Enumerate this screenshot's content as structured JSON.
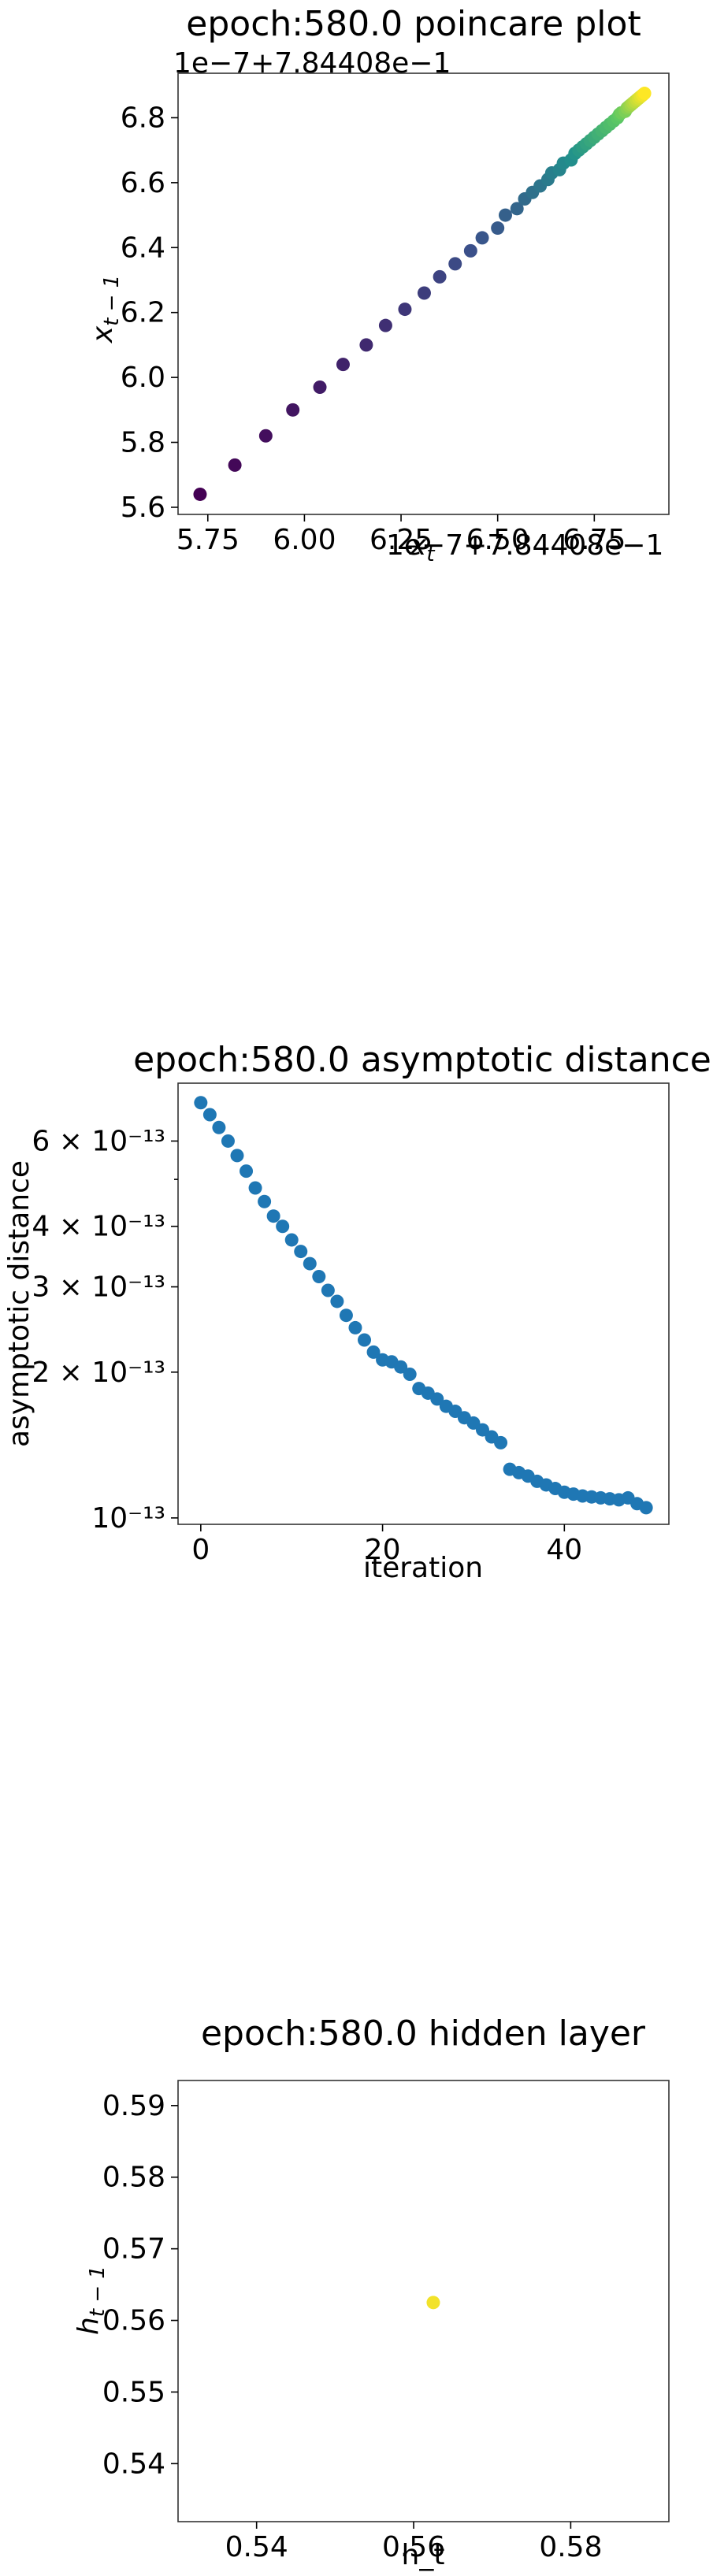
{
  "chart_data": [
    {
      "type": "scatter",
      "title": "epoch:580.0 poincare plot",
      "xlabel": "x_t",
      "ylabel": "x_{t-1}",
      "x_offset_label": "1e−7+7.84408e−1",
      "y_offset_label": "1e−7+7.84408e−1",
      "x_ticks": [
        "5.75",
        "6.00",
        "6.25",
        "6.50",
        "6.75"
      ],
      "y_ticks": [
        "5.6",
        "5.8",
        "6.0",
        "6.2",
        "6.4",
        "6.6",
        "6.8"
      ],
      "colormap": "viridis",
      "x": [
        5.73,
        5.82,
        5.9,
        5.97,
        6.04,
        6.1,
        6.16,
        6.21,
        6.26,
        6.31,
        6.35,
        6.39,
        6.43,
        6.46,
        6.5,
        6.52,
        6.55,
        6.57,
        6.59,
        6.61,
        6.63,
        6.64,
        6.66,
        6.67,
        6.69,
        6.7,
        6.71,
        6.72,
        6.73,
        6.74,
        6.75,
        6.76,
        6.77,
        6.78,
        6.79,
        6.8,
        6.81,
        6.815,
        6.82,
        6.83,
        6.835,
        6.84,
        6.845,
        6.85,
        6.855,
        6.86,
        6.865,
        6.87,
        6.875,
        6.88
      ],
      "y": [
        5.64,
        5.73,
        5.82,
        5.9,
        5.97,
        6.04,
        6.1,
        6.16,
        6.21,
        6.26,
        6.31,
        6.35,
        6.39,
        6.43,
        6.46,
        6.5,
        6.52,
        6.55,
        6.57,
        6.59,
        6.61,
        6.63,
        6.64,
        6.66,
        6.67,
        6.69,
        6.7,
        6.71,
        6.72,
        6.73,
        6.74,
        6.75,
        6.76,
        6.77,
        6.78,
        6.79,
        6.8,
        6.81,
        6.815,
        6.82,
        6.83,
        6.835,
        6.84,
        6.845,
        6.85,
        6.855,
        6.86,
        6.865,
        6.87,
        6.875
      ]
    },
    {
      "type": "scatter",
      "title": "epoch:580.0 asymptotic distance",
      "xlabel": "iteration",
      "ylabel": "asymptotic distance",
      "yscale": "log",
      "x_ticks": [
        "0",
        "20",
        "40"
      ],
      "y_ticks": [
        "6 × 10⁻¹³",
        "4 × 10⁻¹³",
        "3 × 10⁻¹³",
        "2 × 10⁻¹³",
        "10⁻¹³"
      ],
      "color": "#1f77b4",
      "x": [
        0,
        1,
        2,
        3,
        4,
        5,
        6,
        7,
        8,
        9,
        10,
        11,
        12,
        13,
        14,
        15,
        16,
        17,
        18,
        19,
        20,
        21,
        22,
        23,
        24,
        25,
        26,
        27,
        28,
        29,
        30,
        31,
        32,
        33,
        34,
        35,
        36,
        37,
        38,
        39,
        40,
        41,
        42,
        43,
        44,
        45,
        46,
        47,
        48,
        49
      ],
      "y": [
        7.2e-13,
        6.8e-13,
        6.4e-13,
        6e-13,
        5.6e-13,
        5.2e-13,
        4.8e-13,
        4.5e-13,
        4.2e-13,
        4e-13,
        3.75e-13,
        3.55e-13,
        3.35e-13,
        3.15e-13,
        2.95e-13,
        2.8e-13,
        2.62e-13,
        2.47e-13,
        2.33e-13,
        2.2e-13,
        2.12e-13,
        2.1e-13,
        2.05e-13,
        1.98e-13,
        1.85e-13,
        1.81e-13,
        1.76e-13,
        1.7e-13,
        1.66e-13,
        1.61e-13,
        1.57e-13,
        1.52e-13,
        1.47e-13,
        1.43e-13,
        1.26e-13,
        1.24e-13,
        1.22e-13,
        1.19e-13,
        1.17e-13,
        1.15e-13,
        1.13e-13,
        1.12e-13,
        1.11e-13,
        1.105e-13,
        1.1e-13,
        1.095e-13,
        1.09e-13,
        1.1e-13,
        1.07e-13,
        1.05e-13
      ]
    },
    {
      "type": "scatter",
      "title": "epoch:580.0 hidden layer",
      "xlabel": "h_t",
      "ylabel": "h_{t-1}",
      "x_ticks": [
        "0.54",
        "0.56",
        "0.58"
      ],
      "y_ticks": [
        "0.54",
        "0.55",
        "0.56",
        "0.57",
        "0.58",
        "0.59"
      ],
      "color": "#f2e229",
      "x": [
        0.5625
      ],
      "y": [
        0.5625
      ]
    }
  ]
}
